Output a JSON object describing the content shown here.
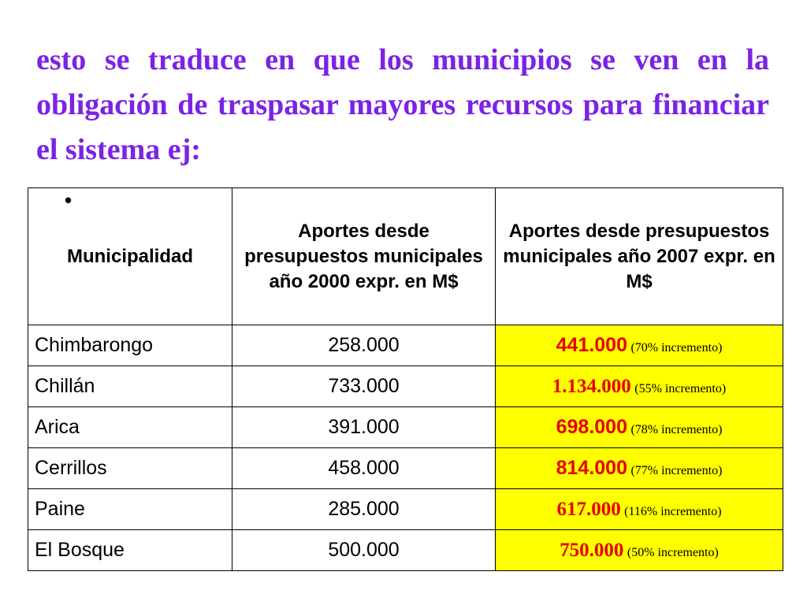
{
  "heading": "esto se traduce en que los municipios se ven en la obligación de traspasar mayores recursos para financiar el sistema ej:",
  "table": {
    "bullet": "•",
    "headers": {
      "municipalidad": "Municipalidad",
      "aportes_2000": "Aportes desde presupuestos municipales año 2000 expr. en M$",
      "aportes_2007": "Aportes desde presupuestos municipales año 2007 expr. en M$"
    },
    "rows": [
      {
        "municipalidad": "Chimbarongo",
        "aportes_2000": "258.000",
        "aportes_2007": "441.000",
        "incremento": "(70% incremento)"
      },
      {
        "municipalidad": "Chillán",
        "aportes_2000": "733.000",
        "aportes_2007": "1.134.000",
        "incremento": "(55% incremento)"
      },
      {
        "municipalidad": "Arica",
        "aportes_2000": "391.000",
        "aportes_2007": "698.000",
        "incremento": "(78% incremento)"
      },
      {
        "municipalidad": "Cerrillos",
        "aportes_2000": "458.000",
        "aportes_2007": "814.000",
        "incremento": "(77% incremento)"
      },
      {
        "municipalidad": "Paine",
        "aportes_2000": "285.000",
        "aportes_2007": "617.000",
        "incremento": "(116% incremento)"
      },
      {
        "municipalidad": "El Bosque",
        "aportes_2000": "500.000",
        "aportes_2007": "750.000",
        "incremento": "(50% incremento)"
      }
    ]
  },
  "colors": {
    "heading": "#7b22e6",
    "highlight_background": "#ffff00",
    "highlight_value": "#e60000"
  }
}
